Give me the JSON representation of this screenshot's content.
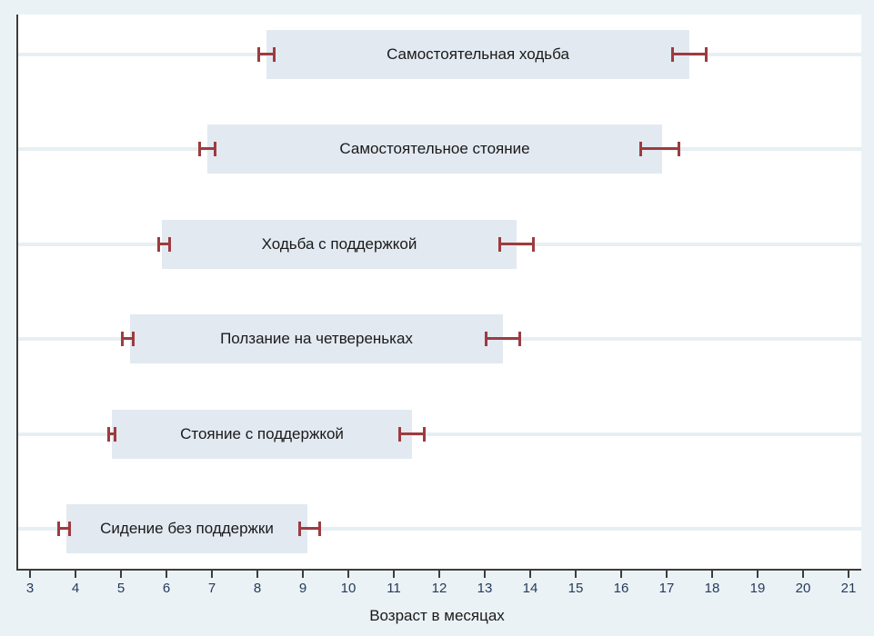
{
  "chart_data": {
    "type": "bar",
    "subtype": "horizontal-range-bars-with-error-bars",
    "title": "",
    "xlabel": "Возраст в месяцах",
    "ylabel": "",
    "xlim": [
      2.7,
      21.3
    ],
    "xticks": [
      3,
      4,
      5,
      6,
      7,
      8,
      9,
      10,
      11,
      12,
      13,
      14,
      15,
      16,
      17,
      18,
      19,
      20,
      21
    ],
    "grid": "horizontal-gridlines-at-each-row",
    "legend": "none",
    "rows": [
      {
        "label": "Самостоятельная ходьба",
        "bar": [
          8.2,
          17.5
        ],
        "left_ci": [
          8.0,
          8.4
        ],
        "right_ci": [
          17.1,
          17.9
        ]
      },
      {
        "label": "Самостоятельное стояние",
        "bar": [
          6.9,
          16.9
        ],
        "left_ci": [
          6.7,
          7.1
        ],
        "right_ci": [
          16.4,
          17.3
        ]
      },
      {
        "label": "Ходьба с поддержкой",
        "bar": [
          5.9,
          13.7
        ],
        "left_ci": [
          5.8,
          6.1
        ],
        "right_ci": [
          13.3,
          14.1
        ]
      },
      {
        "label": "Ползание на четвереньках",
        "bar": [
          5.2,
          13.4
        ],
        "left_ci": [
          5.0,
          5.3
        ],
        "right_ci": [
          13.0,
          13.8
        ]
      },
      {
        "label": "Стояние с поддержкой",
        "bar": [
          4.8,
          11.4
        ],
        "left_ci": [
          4.7,
          4.9
        ],
        "right_ci": [
          11.1,
          11.7
        ]
      },
      {
        "label": "Сидение без поддержки",
        "bar": [
          3.8,
          9.1
        ],
        "left_ci": [
          3.6,
          3.9
        ],
        "right_ci": [
          8.9,
          9.4
        ]
      }
    ],
    "colors": {
      "background": "#ebf2f5",
      "plot_background": "#ffffff",
      "bar_fill": "#e2e9f1",
      "gridline": "#e7eff3",
      "error_bar": "#9d3b40",
      "axis_line": "#3d3d3d",
      "tick_label": "#253a5e",
      "text": "#1a1a1a"
    }
  }
}
